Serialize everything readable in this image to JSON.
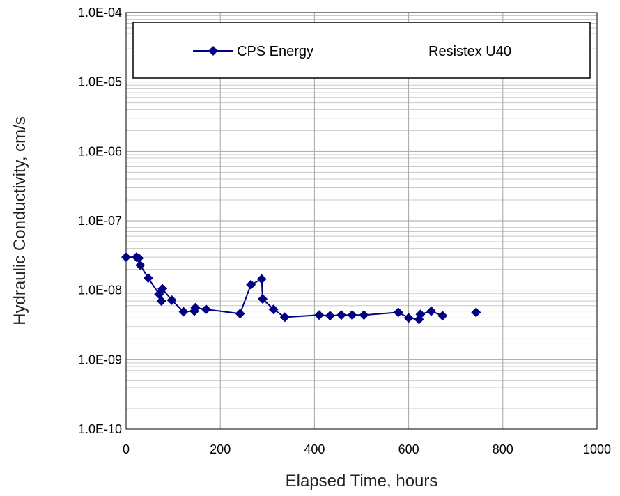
{
  "chart_data": {
    "type": "scatter",
    "title": "",
    "xlabel": "Elapsed Time, hours",
    "ylabel": "Hydraulic Conductivity, cm/s",
    "xlim": [
      0,
      1000
    ],
    "ylim": [
      1e-10,
      0.0001
    ],
    "y_scale": "log",
    "x_ticks": [
      0,
      200,
      400,
      600,
      800,
      1000
    ],
    "x_tick_labels": [
      "0",
      "200",
      "400",
      "600",
      "800",
      "1000"
    ],
    "y_ticks": [
      1e-10,
      1e-09,
      1e-08,
      1e-07,
      1e-06,
      1e-05,
      0.0001
    ],
    "y_tick_labels": [
      "1.0E-10",
      "1.0E-09",
      "1.0E-08",
      "1.0E-07",
      "1.0E-06",
      "1.0E-05",
      "1.0E-04"
    ],
    "grid": true,
    "legend_position": "top",
    "series": [
      {
        "name": "CPS Energy",
        "style": "line-diamond",
        "color": "#000080",
        "x": [
          0,
          22,
          27,
          30,
          47,
          70,
          75,
          77,
          97,
          122,
          145,
          147,
          170,
          242,
          265,
          288,
          290,
          313,
          337,
          410,
          433,
          457,
          480,
          505,
          578,
          600,
          622,
          625,
          648,
          672
        ],
        "y": [
          3e-08,
          3e-08,
          2.9e-08,
          2.3e-08,
          1.5e-08,
          8.8e-09,
          7e-09,
          1.05e-08,
          7.2e-09,
          4.9e-09,
          5e-09,
          5.6e-09,
          5.3e-09,
          4.6e-09,
          1.2e-08,
          1.45e-08,
          7.5e-09,
          5.3e-09,
          4.1e-09,
          4.4e-09,
          4.3e-09,
          4.4e-09,
          4.4e-09,
          4.4e-09,
          4.8e-09,
          4e-09,
          3.8e-09,
          4.5e-09,
          5e-09,
          4.3e-09
        ]
      },
      {
        "name": "Resistex U40",
        "style": "marker-only",
        "color": "#000080",
        "x": [
          743
        ],
        "y": [
          4.8e-09
        ]
      }
    ]
  }
}
